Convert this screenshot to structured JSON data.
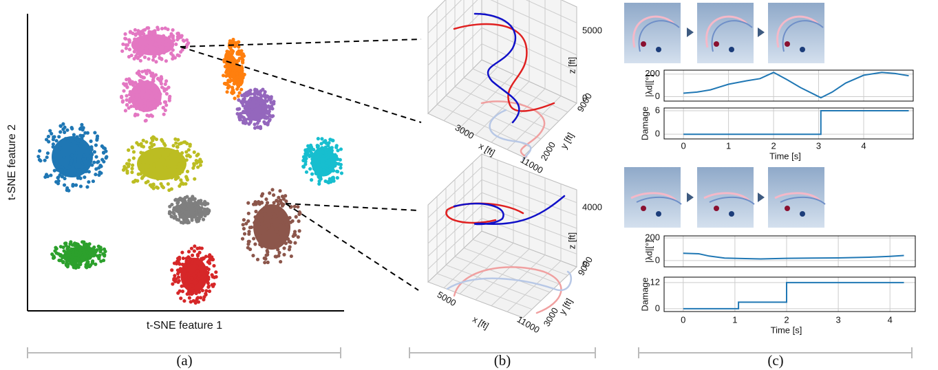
{
  "panel_a": {
    "xlabel": "t-SNE feature 1",
    "ylabel": "t-SNE feature 2",
    "caption": "(a)"
  },
  "panel_b": {
    "caption": "(b)",
    "plots": [
      {
        "xlabel": "x [ft]",
        "ylabel": "y [ft]",
        "zlabel": "z [ft]",
        "xticks": [
          3000,
          11000
        ],
        "yticks": [
          2000,
          9000
        ],
        "zticks": [
          0,
          5000
        ]
      },
      {
        "xlabel": "x [ft]",
        "ylabel": "y [ft]",
        "zlabel": "z [ft]",
        "xticks": [
          5000,
          11000
        ],
        "yticks": [
          3000,
          9000
        ],
        "zticks": [
          0,
          4000
        ]
      }
    ]
  },
  "panel_c": {
    "caption": "(c)",
    "episodes": [
      {
        "xlabel": "Time [s]",
        "xlim": [
          -0.43,
          5.1
        ],
        "xticks": [
          0,
          1,
          2,
          3,
          4
        ],
        "angle": {
          "ylabel": "|λd|[°]",
          "ylim": [
            -40,
            235
          ],
          "yticks": [
            0,
            200
          ],
          "color": "#1f77b4",
          "x": [
            0,
            0.3,
            0.6,
            1.0,
            1.4,
            1.7,
            2.0,
            2.3,
            2.6,
            2.9,
            3.05,
            3.3,
            3.6,
            4.0,
            4.4,
            4.7,
            5.0
          ],
          "values": [
            30,
            40,
            60,
            110,
            140,
            160,
            215,
            150,
            80,
            20,
            -10,
            40,
            120,
            190,
            215,
            205,
            185
          ]
        },
        "damage": {
          "ylabel": "Damage",
          "ylim": [
            -1.2,
            6.7
          ],
          "yticks": [
            0,
            6
          ],
          "color": "#1f77b4",
          "x": [
            0,
            3.05,
            3.05,
            5.0
          ],
          "values": [
            0,
            0,
            6,
            6
          ]
        }
      },
      {
        "xlabel": "Time [s]",
        "xlim": [
          -0.37,
          4.49
        ],
        "xticks": [
          0,
          1,
          2,
          3,
          4
        ],
        "angle": {
          "ylabel": "|λd|[°]",
          "ylim": [
            -55,
            218
          ],
          "yticks": [
            0,
            200
          ],
          "color": "#1f77b4",
          "x": [
            0,
            0.3,
            0.5,
            0.8,
            1.2,
            1.5,
            2.0,
            2.5,
            3.0,
            3.6,
            4.0,
            4.27
          ],
          "values": [
            65,
            60,
            40,
            22,
            18,
            15,
            20,
            22,
            24,
            30,
            38,
            45
          ]
        },
        "damage": {
          "ylabel": "Damage",
          "ylim": [
            -1.3,
            14.5
          ],
          "yticks": [
            0,
            12
          ],
          "color": "#1f77b4",
          "x": [
            0,
            1.07,
            1.07,
            2.0,
            2.0,
            4.27
          ],
          "values": [
            0,
            0,
            3,
            3,
            12,
            12
          ]
        }
      }
    ]
  }
}
